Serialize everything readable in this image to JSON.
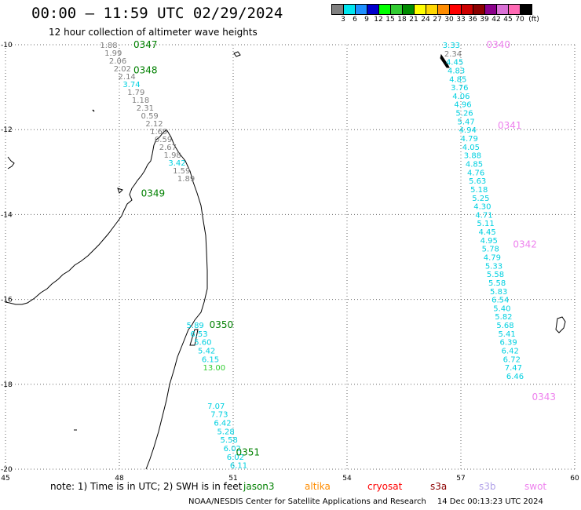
{
  "header": {
    "title": "00:00 – 11:59 UTC 02/29/2024",
    "subtitle": "12 hour collection of altimeter wave heights"
  },
  "legend": {
    "unit": "(ft)",
    "levels": [
      {
        "label": "3",
        "color": "#808080"
      },
      {
        "label": "6",
        "color": "#00e5ee"
      },
      {
        "label": "9",
        "color": "#1e90ff"
      },
      {
        "label": "12",
        "color": "#0000cd"
      },
      {
        "label": "15",
        "color": "#00ff00"
      },
      {
        "label": "18",
        "color": "#32cd32"
      },
      {
        "label": "21",
        "color": "#008b00"
      },
      {
        "label": "24",
        "color": "#ffff00"
      },
      {
        "label": "27",
        "color": "#ffd700"
      },
      {
        "label": "30",
        "color": "#ff8c00"
      },
      {
        "label": "33",
        "color": "#ff0000"
      },
      {
        "label": "36",
        "color": "#cd0000"
      },
      {
        "label": "39",
        "color": "#8b0000"
      },
      {
        "label": "42",
        "color": "#8b008b"
      },
      {
        "label": "45",
        "color": "#da70d6"
      },
      {
        "label": "70",
        "color": "#ff69b4"
      },
      {
        "label": "",
        "color": "#000000"
      }
    ]
  },
  "map": {
    "lon_range": [
      45,
      60
    ],
    "lat_range": [
      -20,
      -10
    ],
    "lon_ticks": [
      "45",
      "48",
      "51",
      "54",
      "57",
      "60"
    ],
    "lat_ticks": [
      "-10",
      "-12",
      "-14",
      "-16",
      "-18",
      "-20"
    ],
    "track_labels": [
      {
        "text": "0347",
        "lon": 48.0,
        "lat": -10.0,
        "color": "#008000"
      },
      {
        "text": "0348",
        "lon": 48.0,
        "lat": -10.6,
        "color": "#008000"
      },
      {
        "text": "0349",
        "lon": 48.2,
        "lat": -13.5,
        "color": "#008000"
      },
      {
        "text": "0350",
        "lon": 50.0,
        "lat": -16.6,
        "color": "#008000"
      },
      {
        "text": "0351",
        "lon": 50.7,
        "lat": -19.6,
        "color": "#008000"
      },
      {
        "text": "0340",
        "lon": 57.3,
        "lat": -10.0,
        "color": "#ee82ee"
      },
      {
        "text": "0341",
        "lon": 57.6,
        "lat": -11.9,
        "color": "#ee82ee"
      },
      {
        "text": "0342",
        "lon": 58.0,
        "lat": -14.7,
        "color": "#ee82ee"
      },
      {
        "text": "0343",
        "lon": 58.5,
        "lat": -18.3,
        "color": "#ee82ee"
      }
    ],
    "track_a": {
      "start_lat": -10.0,
      "step_lat": 0.185,
      "values": [
        "1.88",
        "1.99",
        "2.06",
        "2.02",
        "2.14",
        "3.74",
        "1.79",
        "1.18",
        "2.31",
        "0.59",
        "2.12",
        "1.69",
        "0.59",
        "2.67",
        "1.98",
        "3.42",
        "1.59",
        "1.89"
      ],
      "colors": [
        "g",
        "g",
        "g",
        "g",
        "g",
        "c",
        "g",
        "g",
        "g",
        "g",
        "g",
        "g",
        "g",
        "g",
        "g",
        "c",
        "g",
        "g"
      ]
    },
    "track_b": {
      "start_lat": -16.6,
      "step_lat": 0.2,
      "values": [
        "5.89",
        "6.53",
        "5.60",
        "5.42",
        "6.15",
        "13.00"
      ],
      "colors": [
        "c",
        "c",
        "c",
        "c",
        "c",
        "lg"
      ]
    },
    "track_c": {
      "start_lat": -18.5,
      "step_lat": 0.2,
      "values": [
        "7.07",
        "7.73",
        "6.42",
        "5.28",
        "5.58",
        "6.02",
        "6.02",
        "6.11"
      ],
      "colors": [
        "c",
        "c",
        "c",
        "c",
        "c",
        "c",
        "c",
        "c"
      ]
    },
    "track_d": {
      "start_lat": -10.0,
      "step_lat": 0.2,
      "values": [
        "3.33",
        "2.34",
        "4.45",
        "4.83",
        "4.85",
        "3.76",
        "4.06",
        "4.96",
        "5.26",
        "5.47",
        "4.94",
        "4.79",
        "4.05",
        "3.88",
        "4.85",
        "4.76",
        "5.63",
        "5.18",
        "5.25",
        "4.30",
        "4.71",
        "5.11",
        "4.45",
        "4.95",
        "5.78",
        "4.79",
        "5.33",
        "5.58",
        "5.58",
        "5.83",
        "6.54",
        "5.40",
        "5.82",
        "5.68",
        "5.41",
        "6.39",
        "6.42",
        "6.72",
        "7.47",
        "6.46"
      ],
      "colors": [
        "c",
        "g",
        "c",
        "c",
        "c",
        "c",
        "c",
        "c",
        "c",
        "c",
        "c",
        "c",
        "c",
        "c",
        "c",
        "c",
        "c",
        "c",
        "c",
        "c",
        "c",
        "c",
        "c",
        "c",
        "c",
        "c",
        "c",
        "c",
        "c",
        "c",
        "c",
        "c",
        "c",
        "c",
        "c",
        "c",
        "c",
        "c",
        "c",
        "c"
      ]
    },
    "value_colors": {
      "g": "#808080",
      "c": "#00d0e0",
      "lg": "#32cd32"
    }
  },
  "note": {
    "text": "note:  1) Time is in UTC;  2) SWH is in feet",
    "satellites": [
      {
        "name": "jason3",
        "color": "#008000"
      },
      {
        "name": "altika",
        "color": "#ff8c00"
      },
      {
        "name": "cryosat",
        "color": "#ff0000"
      },
      {
        "name": "s3a",
        "color": "#8b0000"
      },
      {
        "name": "s3b",
        "color": "#b0a0e8"
      },
      {
        "name": "swot",
        "color": "#ee82ee"
      }
    ]
  },
  "footer": {
    "credit": "NOAA/NESDIS Center for Satellite Applications and Research",
    "timestamp": "14 Dec 00:13:23 UTC 2024"
  }
}
